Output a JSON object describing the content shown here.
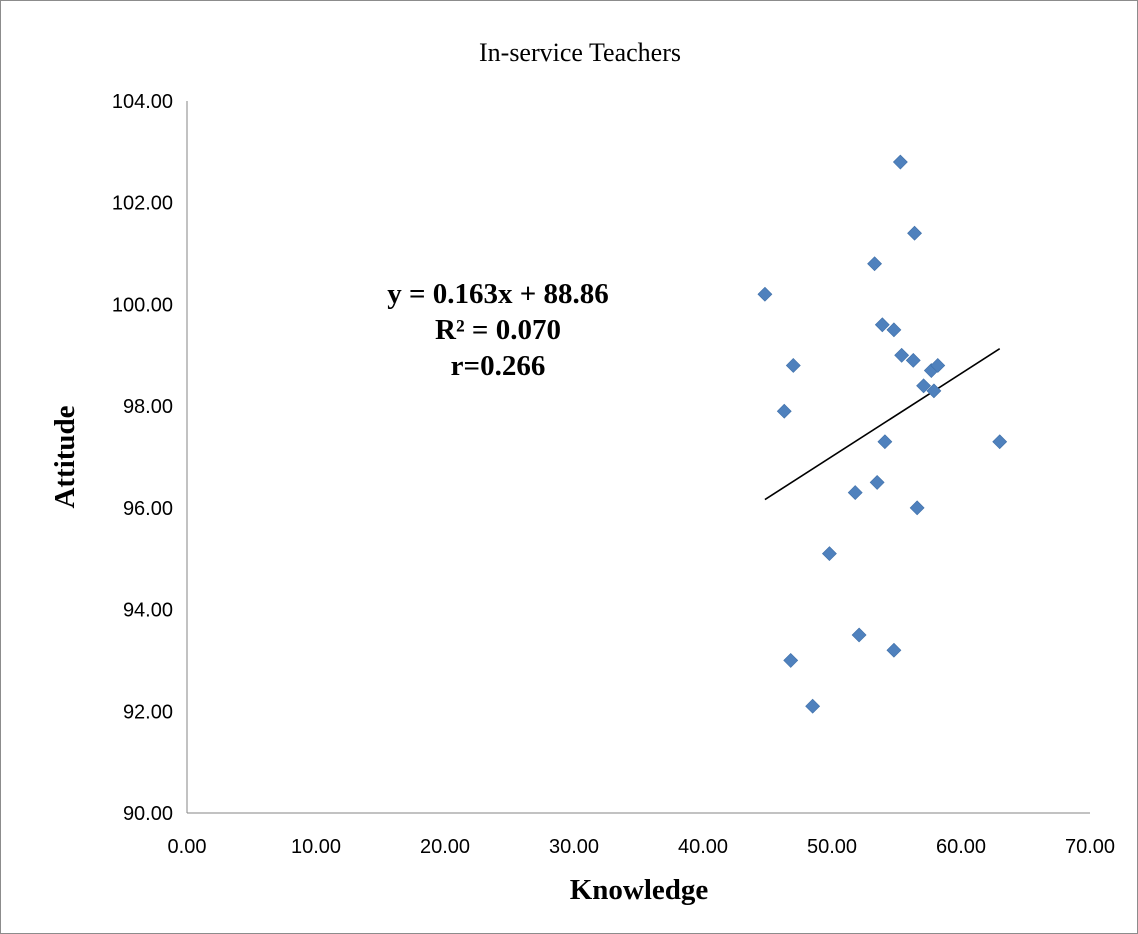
{
  "chart_data": {
    "type": "scatter",
    "title": "In-service Teachers",
    "xlabel": "Knowledge",
    "ylabel": "Attitude",
    "xlim": [
      0,
      70
    ],
    "ylim": [
      90,
      104
    ],
    "x_ticks": [
      "0.00",
      "10.00",
      "20.00",
      "30.00",
      "40.00",
      "50.00",
      "60.00",
      "70.00"
    ],
    "y_ticks": [
      "90.00",
      "92.00",
      "94.00",
      "96.00",
      "98.00",
      "100.00",
      "102.00",
      "104.00"
    ],
    "grid": false,
    "legend": "none",
    "marker_color": "#4F81BD",
    "points": [
      {
        "x": 44.8,
        "y": 100.2
      },
      {
        "x": 46.3,
        "y": 97.9
      },
      {
        "x": 46.8,
        "y": 93.0
      },
      {
        "x": 47.0,
        "y": 98.8
      },
      {
        "x": 48.5,
        "y": 92.1
      },
      {
        "x": 49.8,
        "y": 95.1
      },
      {
        "x": 51.8,
        "y": 96.3
      },
      {
        "x": 52.1,
        "y": 93.5
      },
      {
        "x": 53.3,
        "y": 100.8
      },
      {
        "x": 53.5,
        "y": 96.5
      },
      {
        "x": 53.9,
        "y": 99.6
      },
      {
        "x": 54.1,
        "y": 97.3
      },
      {
        "x": 54.8,
        "y": 99.5
      },
      {
        "x": 54.8,
        "y": 93.2
      },
      {
        "x": 55.3,
        "y": 102.8
      },
      {
        "x": 55.4,
        "y": 99.0
      },
      {
        "x": 56.3,
        "y": 98.9
      },
      {
        "x": 56.4,
        "y": 101.4
      },
      {
        "x": 56.6,
        "y": 96.0
      },
      {
        "x": 57.1,
        "y": 98.4
      },
      {
        "x": 57.7,
        "y": 98.7
      },
      {
        "x": 57.9,
        "y": 98.3
      },
      {
        "x": 58.2,
        "y": 98.8
      },
      {
        "x": 63.0,
        "y": 97.3
      }
    ],
    "trendline": {
      "slope": 0.163,
      "intercept": 88.86,
      "x_start": 44.8,
      "x_end": 63.0,
      "color": "#000000"
    },
    "annotations": [
      "y = 0.163x + 88.86",
      "R² = 0.070",
      "r=0.266"
    ]
  }
}
